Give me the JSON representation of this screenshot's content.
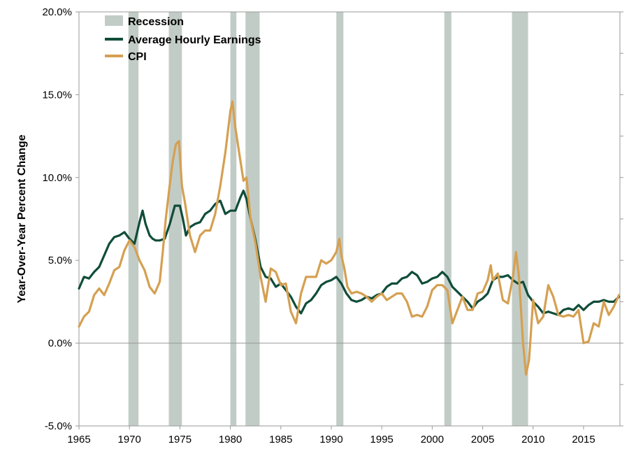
{
  "chart_data": {
    "type": "line",
    "title": "",
    "xlabel": "",
    "ylabel": "Year-Over-Year Percent Change",
    "xlim": [
      1965,
      2018.6
    ],
    "ylim": [
      -5,
      20
    ],
    "x_ticks": [
      1965,
      1970,
      1975,
      1980,
      1985,
      1990,
      1995,
      2000,
      2005,
      2010,
      2015
    ],
    "x_tick_labels": [
      "1965",
      "1970",
      "1975",
      "1980",
      "1985",
      "1990",
      "1995",
      "2000",
      "2005",
      "2010",
      "2015"
    ],
    "y_ticks": [
      -5,
      0,
      5,
      10,
      15,
      20
    ],
    "y_tick_labels": [
      "-5.0%",
      "0.0%",
      "5.0%",
      "10.0%",
      "15.0%",
      "20.0%"
    ],
    "grid": false,
    "legend_position": "top-left",
    "recessions": [
      {
        "start": 1969.9,
        "end": 1970.9
      },
      {
        "start": 1973.9,
        "end": 1975.2
      },
      {
        "start": 1980.0,
        "end": 1980.6
      },
      {
        "start": 1981.5,
        "end": 1982.9
      },
      {
        "start": 1990.5,
        "end": 1991.2
      },
      {
        "start": 2001.2,
        "end": 2001.9
      },
      {
        "start": 2007.9,
        "end": 2009.5
      }
    ],
    "series": [
      {
        "name": "Recession",
        "color": "#c2ccc6",
        "kind": "band"
      },
      {
        "name": "Average Hourly Earnings",
        "color": "#0f4d3a",
        "x": [
          1965.0,
          1965.5,
          1966.0,
          1966.5,
          1967.0,
          1967.5,
          1968.0,
          1968.5,
          1969.0,
          1969.5,
          1970.0,
          1970.5,
          1971.0,
          1971.3,
          1971.6,
          1972.0,
          1972.3,
          1972.6,
          1973.0,
          1973.5,
          1974.0,
          1974.5,
          1975.0,
          1975.3,
          1975.6,
          1976.0,
          1976.5,
          1977.0,
          1977.5,
          1978.0,
          1978.5,
          1979.0,
          1979.5,
          1980.0,
          1980.5,
          1981.0,
          1981.3,
          1981.6,
          1982.0,
          1982.5,
          1983.0,
          1983.5,
          1984.0,
          1984.5,
          1985.0,
          1985.5,
          1986.0,
          1986.5,
          1987.0,
          1987.5,
          1988.0,
          1988.5,
          1989.0,
          1989.5,
          1990.0,
          1990.5,
          1991.0,
          1991.5,
          1992.0,
          1992.5,
          1993.0,
          1993.5,
          1994.0,
          1994.5,
          1995.0,
          1995.5,
          1996.0,
          1996.5,
          1997.0,
          1997.5,
          1998.0,
          1998.5,
          1999.0,
          1999.5,
          2000.0,
          2000.5,
          2001.0,
          2001.5,
          2002.0,
          2002.5,
          2003.0,
          2003.5,
          2004.0,
          2004.5,
          2005.0,
          2005.5,
          2006.0,
          2006.5,
          2007.0,
          2007.5,
          2008.0,
          2008.5,
          2009.0,
          2009.5,
          2010.0,
          2010.5,
          2011.0,
          2011.5,
          2012.0,
          2012.5,
          2013.0,
          2013.5,
          2014.0,
          2014.5,
          2015.0,
          2015.5,
          2016.0,
          2016.5,
          2017.0,
          2017.5,
          2018.0,
          2018.5
        ],
        "values": [
          3.3,
          4.0,
          3.9,
          4.3,
          4.6,
          5.3,
          6.0,
          6.4,
          6.5,
          6.7,
          6.3,
          6.0,
          7.3,
          8.0,
          7.2,
          6.5,
          6.3,
          6.2,
          6.2,
          6.3,
          7.2,
          8.3,
          8.3,
          7.5,
          6.5,
          7.0,
          7.2,
          7.3,
          7.8,
          8.0,
          8.4,
          8.6,
          7.8,
          8.0,
          8.0,
          8.8,
          9.2,
          8.7,
          7.5,
          6.2,
          4.6,
          4.0,
          3.9,
          3.4,
          3.6,
          3.2,
          2.8,
          2.2,
          1.8,
          2.4,
          2.6,
          3.0,
          3.5,
          3.7,
          3.8,
          4.0,
          3.6,
          3.0,
          2.6,
          2.5,
          2.6,
          2.8,
          2.7,
          2.9,
          3.0,
          3.4,
          3.6,
          3.6,
          3.9,
          4.0,
          4.3,
          4.1,
          3.6,
          3.7,
          3.9,
          4.0,
          4.3,
          4.0,
          3.4,
          3.1,
          2.8,
          2.5,
          2.1,
          2.5,
          2.7,
          3.0,
          3.8,
          4.0,
          4.0,
          4.1,
          3.8,
          3.6,
          3.7,
          2.9,
          2.5,
          2.2,
          1.8,
          1.9,
          1.8,
          1.7,
          2.0,
          2.1,
          2.0,
          2.3,
          2.0,
          2.3,
          2.5,
          2.5,
          2.6,
          2.5,
          2.5,
          2.8
        ]
      },
      {
        "name": "CPI",
        "color": "#d5a052",
        "x": [
          1965.0,
          1965.5,
          1966.0,
          1966.5,
          1967.0,
          1967.5,
          1968.0,
          1968.5,
          1969.0,
          1969.5,
          1970.0,
          1970.5,
          1971.0,
          1971.5,
          1972.0,
          1972.5,
          1973.0,
          1973.3,
          1973.6,
          1974.0,
          1974.3,
          1974.6,
          1974.9,
          1975.2,
          1975.5,
          1976.0,
          1976.5,
          1977.0,
          1977.5,
          1978.0,
          1978.5,
          1979.0,
          1979.5,
          1980.0,
          1980.2,
          1980.5,
          1981.0,
          1981.3,
          1981.6,
          1982.0,
          1982.5,
          1983.0,
          1983.5,
          1984.0,
          1984.5,
          1985.0,
          1985.5,
          1986.0,
          1986.5,
          1987.0,
          1987.5,
          1988.0,
          1988.5,
          1989.0,
          1989.5,
          1990.0,
          1990.5,
          1990.8,
          1991.0,
          1991.3,
          1991.6,
          1992.0,
          1992.5,
          1993.0,
          1993.5,
          1994.0,
          1994.5,
          1995.0,
          1995.5,
          1996.0,
          1996.5,
          1997.0,
          1997.5,
          1998.0,
          1998.5,
          1999.0,
          1999.5,
          2000.0,
          2000.5,
          2001.0,
          2001.5,
          2002.0,
          2002.5,
          2003.0,
          2003.5,
          2004.0,
          2004.5,
          2005.0,
          2005.5,
          2005.8,
          2006.0,
          2006.5,
          2007.0,
          2007.5,
          2008.0,
          2008.3,
          2008.6,
          2009.0,
          2009.3,
          2009.6,
          2010.0,
          2010.5,
          2011.0,
          2011.5,
          2012.0,
          2012.5,
          2013.0,
          2013.5,
          2014.0,
          2014.5,
          2015.0,
          2015.5,
          2016.0,
          2016.5,
          2017.0,
          2017.5,
          2018.0,
          2018.5
        ],
        "values": [
          1.0,
          1.6,
          1.9,
          2.9,
          3.3,
          2.9,
          3.6,
          4.4,
          4.6,
          5.6,
          6.2,
          5.8,
          5.0,
          4.4,
          3.4,
          3.0,
          3.7,
          5.5,
          7.5,
          9.6,
          11.0,
          12.0,
          12.2,
          9.5,
          8.5,
          6.5,
          5.5,
          6.5,
          6.8,
          6.8,
          7.8,
          9.5,
          11.5,
          14.0,
          14.6,
          13.0,
          11.0,
          9.8,
          10.0,
          7.5,
          6.0,
          4.0,
          2.5,
          4.5,
          4.3,
          3.5,
          3.6,
          1.9,
          1.2,
          3.0,
          4.0,
          4.0,
          4.0,
          5.0,
          4.8,
          5.0,
          5.5,
          6.3,
          5.3,
          4.5,
          3.4,
          3.0,
          3.1,
          3.0,
          2.8,
          2.5,
          2.8,
          3.0,
          2.6,
          2.8,
          3.0,
          3.0,
          2.5,
          1.6,
          1.7,
          1.6,
          2.2,
          3.2,
          3.5,
          3.5,
          3.2,
          1.2,
          2.0,
          2.8,
          2.0,
          2.0,
          3.0,
          3.1,
          3.8,
          4.7,
          3.8,
          4.2,
          2.6,
          2.4,
          4.0,
          5.5,
          4.0,
          0.0,
          -1.9,
          -1.0,
          2.6,
          1.2,
          1.6,
          3.5,
          2.8,
          1.7,
          1.6,
          1.7,
          1.6,
          2.0,
          0.0,
          0.1,
          1.2,
          1.0,
          2.5,
          1.7,
          2.2,
          2.9
        ]
      }
    ]
  }
}
